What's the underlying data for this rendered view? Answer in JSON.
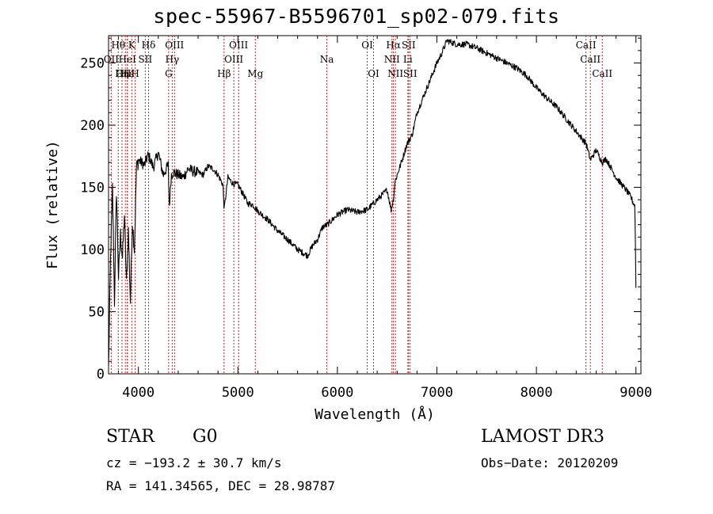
{
  "chart_data": {
    "type": "line",
    "title": "spec-55967-B5596701_sp02-079.fits",
    "xlabel": "Wavelength (Å)",
    "ylabel": "Flux (relative)",
    "xlim": [
      3700,
      9050
    ],
    "ylim": [
      0,
      272
    ],
    "xticks": [
      4000,
      5000,
      6000,
      7000,
      8000,
      9000
    ],
    "yticks": [
      0,
      50,
      100,
      150,
      200,
      250
    ],
    "series": [
      {
        "name": "flux",
        "x": [
          3700,
          3720,
          3740,
          3760,
          3780,
          3800,
          3820,
          3840,
          3860,
          3880,
          3900,
          3920,
          3940,
          3960,
          3980,
          4000,
          4030,
          4060,
          4100,
          4150,
          4200,
          4250,
          4300,
          4310,
          4330,
          4350,
          4400,
          4450,
          4500,
          4550,
          4600,
          4650,
          4700,
          4750,
          4800,
          4850,
          4862,
          4900,
          4950,
          5000,
          5050,
          5100,
          5150,
          5200,
          5300,
          5400,
          5500,
          5600,
          5700,
          5750,
          5800,
          5850,
          5900,
          6000,
          6100,
          6200,
          6300,
          6400,
          6500,
          6540,
          6563,
          6580,
          6650,
          6700,
          6750,
          6800,
          6900,
          7000,
          7050,
          7100,
          7200,
          7300,
          7400,
          7500,
          7600,
          7700,
          7800,
          7900,
          8000,
          8100,
          8200,
          8300,
          8400,
          8500,
          8542,
          8600,
          8662,
          8700,
          8800,
          8900,
          8950,
          8970,
          8990,
          9000
        ],
        "y": [
          4,
          92,
          150,
          58,
          148,
          78,
          112,
          93,
          128,
          72,
          115,
          58,
          122,
          100,
          165,
          172,
          170,
          168,
          176,
          166,
          178,
          160,
          168,
          133,
          160,
          162,
          160,
          158,
          165,
          163,
          162,
          160,
          167,
          165,
          160,
          152,
          132,
          158,
          153,
          152,
          145,
          137,
          136,
          131,
          124,
          115,
          108,
          100,
          95,
          103,
          108,
          118,
          120,
          128,
          132,
          130,
          132,
          140,
          148,
          132,
          140,
          155,
          172,
          185,
          192,
          210,
          230,
          250,
          258,
          268,
          265,
          265,
          262,
          258,
          254,
          250,
          246,
          240,
          230,
          222,
          215,
          205,
          195,
          185,
          172,
          180,
          170,
          173,
          158,
          148,
          142,
          138,
          135,
          70
        ]
      }
    ],
    "lines": [
      {
        "name": "Hθ",
        "x": 3798,
        "row": 0,
        "yf": 0.99
      },
      {
        "name": "OII",
        "x": 3727,
        "row": 1,
        "yf": 0.99
      },
      {
        "name": "OIII",
        "x": 3869,
        "row": 2,
        "yf": 0.99
      },
      {
        "name": "Hε",
        "x": 3889,
        "row": 2,
        "yf": 0.99
      },
      {
        "name": "K",
        "x": 3934,
        "row": 0,
        "yf": 0.99
      },
      {
        "name": "Hη",
        "x": 3835,
        "row": 2,
        "yf": 0.99
      },
      {
        "name": "H",
        "x": 3968,
        "row": 2,
        "yf": 0.99
      },
      {
        "name": "HeI",
        "x": 3889,
        "row": 1,
        "yf": 0.99
      },
      {
        "name": "SII",
        "x": 4069,
        "row": 1,
        "yf": 0.99
      },
      {
        "name": "Hδ",
        "x": 4102,
        "row": 0,
        "yf": 0.99
      },
      {
        "name": "OIII",
        "x": 4363,
        "row": 0,
        "yf": 0.99
      },
      {
        "name": "Hγ",
        "x": 4340,
        "row": 1,
        "yf": 0.99
      },
      {
        "name": "G",
        "x": 4304,
        "row": 2,
        "yf": 0.99
      },
      {
        "name": "Hβ",
        "x": 4861,
        "row": 2,
        "yf": 0.99
      },
      {
        "name": "OIII",
        "x": 5007,
        "row": 0,
        "yf": 0.99
      },
      {
        "name": "OIII",
        "x": 4959,
        "row": 1,
        "yf": 0.99
      },
      {
        "name": "Mg",
        "x": 5175,
        "row": 2,
        "yf": 0.99
      },
      {
        "name": "Na",
        "x": 5894,
        "row": 1,
        "yf": 0.99
      },
      {
        "name": "OI",
        "x": 6300,
        "row": 0,
        "yf": 0.99
      },
      {
        "name": "OI",
        "x": 6363,
        "row": 2,
        "yf": 0.99
      },
      {
        "name": "Hα",
        "x": 6563,
        "row": 0,
        "yf": 0.99
      },
      {
        "name": "SII",
        "x": 6716,
        "row": 0,
        "yf": 0.99
      },
      {
        "name": "NII",
        "x": 6548,
        "row": 1,
        "yf": 0.99
      },
      {
        "name": "Li",
        "x": 6708,
        "row": 1,
        "yf": 0.99
      },
      {
        "name": "NII",
        "x": 6583,
        "row": 2,
        "yf": 0.99
      },
      {
        "name": "SII",
        "x": 6731,
        "row": 2,
        "yf": 0.99
      },
      {
        "name": "CaII",
        "x": 8498,
        "row": 0,
        "yf": 0.99
      },
      {
        "name": "CaII",
        "x": 8542,
        "row": 1,
        "yf": 0.99
      },
      {
        "name": "CaII",
        "x": 8662,
        "row": 2,
        "yf": 0.99
      }
    ]
  },
  "info": {
    "class": "STAR",
    "subclass": "G0",
    "survey": "LAMOST DR3",
    "cz": "cz = −193.2 ± 30.7 km/s",
    "obs_date": "Obs−Date: 20120209",
    "coords": "RA = 141.34565, DEC =  28.98787"
  },
  "colors": {
    "line": "#000000",
    "marker": "#cc2222",
    "background": "#ffffff"
  }
}
